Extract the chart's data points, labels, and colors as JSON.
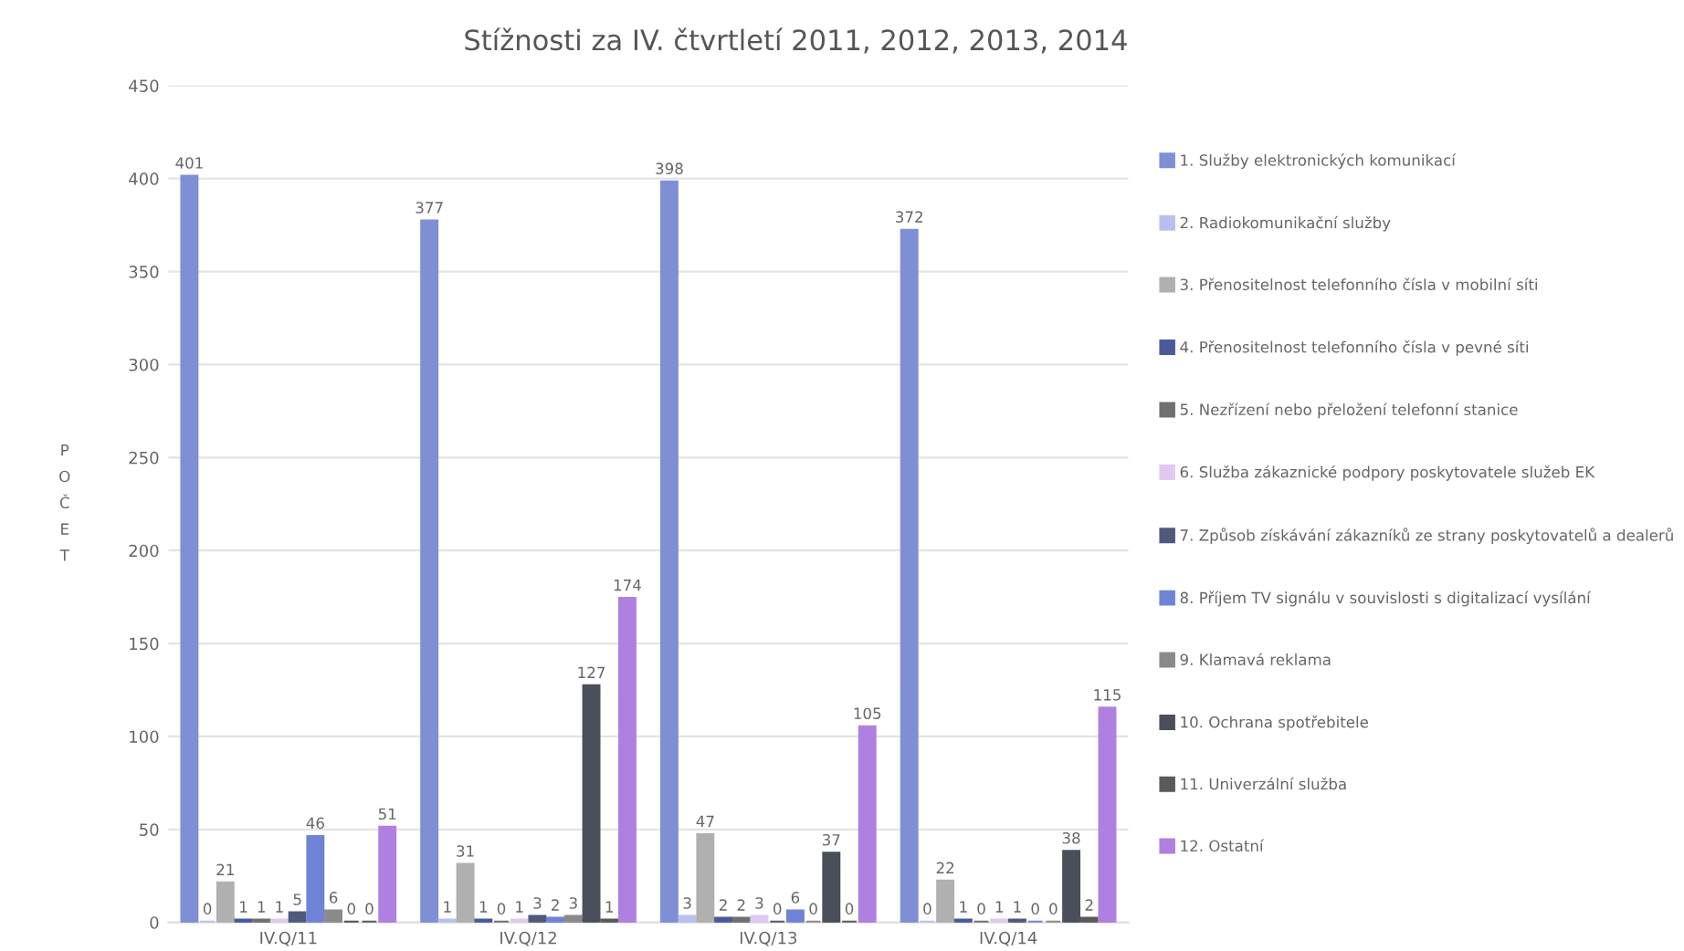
{
  "chart_data": {
    "type": "bar",
    "title": "Stížnosti za IV. čtvrtletí 2011, 2012, 2013, 2014",
    "ylabel": "POČET",
    "categories": [
      "IV.Q/11",
      "IV.Q/12",
      "IV.Q/13",
      "IV.Q/14"
    ],
    "series": [
      {
        "name": "1. Služby elektronických komunikací",
        "color": "#7f8fd6",
        "values": [
          401,
          377,
          398,
          372
        ]
      },
      {
        "name": "2. Radiokomunikační služby",
        "color": "#b8c0f0",
        "values": [
          0,
          1,
          3,
          0
        ]
      },
      {
        "name": "3. Přenositelnost telefonního čísla v mobilní síti",
        "color": "#b0b0b0",
        "values": [
          21,
          31,
          47,
          22
        ]
      },
      {
        "name": "4. Přenositelnost telefonního čísla v pevné síti",
        "color": "#4a5a9a",
        "values": [
          1,
          1,
          2,
          1
        ]
      },
      {
        "name": "5. Nezřízení nebo přeložení telefonní stanice",
        "color": "#707070",
        "values": [
          1,
          0,
          2,
          0
        ]
      },
      {
        "name": "6. Služba zákaznické podpory poskytovatele služeb EK",
        "color": "#e0c8f0",
        "values": [
          1,
          1,
          3,
          1
        ]
      },
      {
        "name": "7. Způsob získávání zákazníků ze strany poskytovatelů a dealerů",
        "color": "#505a7a",
        "values": [
          5,
          3,
          0,
          1
        ]
      },
      {
        "name": "8. Příjem TV signálu v souvislosti s digitalizací vysílání",
        "color": "#6f84d6",
        "values": [
          46,
          2,
          6,
          0
        ]
      },
      {
        "name": "9. Klamavá reklama",
        "color": "#8a8a8a",
        "values": [
          6,
          3,
          0,
          0
        ]
      },
      {
        "name": "10. Ochrana spotřebitele",
        "color": "#4a4f5a",
        "values": [
          0,
          127,
          37,
          38
        ]
      },
      {
        "name": "11. Univerzální služba",
        "color": "#5a5a5a",
        "values": [
          0,
          1,
          0,
          2
        ]
      },
      {
        "name": "12. Ostatní",
        "color": "#b080e0",
        "values": [
          51,
          174,
          105,
          115
        ]
      }
    ],
    "ylim": [
      0,
      450
    ],
    "yticks": [
      0,
      50,
      100,
      150,
      200,
      250,
      300,
      350,
      400,
      450
    ],
    "grid": "y",
    "legend": "right",
    "data_labels": true
  }
}
